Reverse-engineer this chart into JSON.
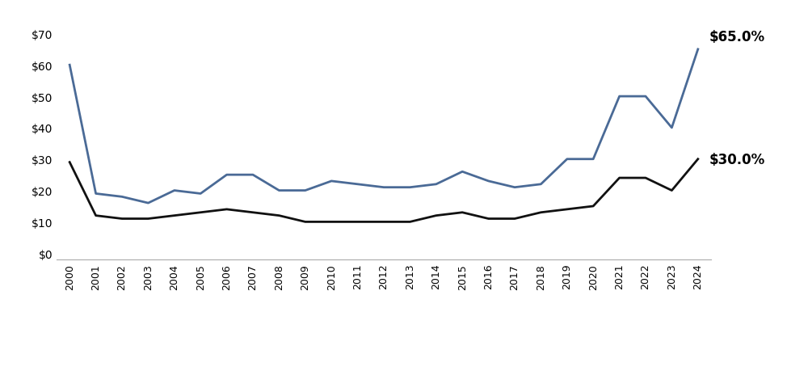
{
  "years": [
    2000,
    2001,
    2002,
    2003,
    2004,
    2005,
    2006,
    2007,
    2008,
    2009,
    2010,
    2011,
    2012,
    2013,
    2014,
    2015,
    2016,
    2017,
    2018,
    2019,
    2020,
    2021,
    2022,
    2023,
    2024
  ],
  "with_cvc": [
    60,
    19,
    18,
    16,
    20,
    19,
    25,
    25,
    20,
    20,
    23,
    22,
    21,
    21,
    22,
    26,
    23,
    21,
    22,
    30,
    30,
    50,
    50,
    40,
    65
  ],
  "without_cvc": [
    29,
    12,
    11,
    11,
    12,
    13,
    14,
    13,
    12,
    10,
    10,
    10,
    10,
    10,
    12,
    13,
    11,
    11,
    13,
    14,
    15,
    24,
    24,
    20,
    30
  ],
  "with_cvc_color": "#4a6a96",
  "without_cvc_color": "#111111",
  "with_cvc_end_label": "$65.0%",
  "without_cvc_end_label": "$30.0%",
  "yticks": [
    0,
    10,
    20,
    30,
    40,
    50,
    60,
    70
  ],
  "ylim": [
    -2,
    75
  ],
  "background_color": "#ffffff",
  "line_width": 2.0,
  "annotation_fontsize": 12
}
